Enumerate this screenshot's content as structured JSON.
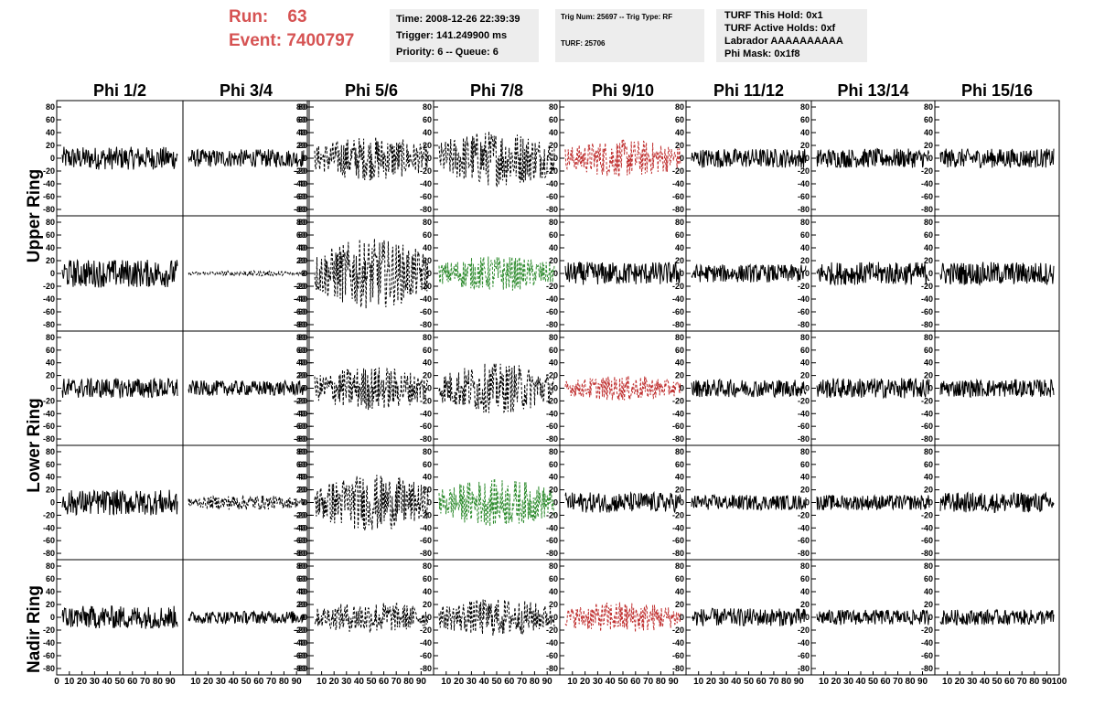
{
  "header": {
    "run_label": "Run:",
    "run_value": "63",
    "event_label": "Event:",
    "event_value": "7400797"
  },
  "info_boxes": {
    "box1": [
      "Time: 2008-12-26 22:39:39",
      "Trigger: 141.249900 ms",
      "Priority: 6 -- Queue: 6"
    ],
    "box2": [
      "Trig Num: 25697 -- Trig Type: RF",
      "TURF: 25706"
    ],
    "box3": [
      "TURF This Hold: 0x1",
      "TURF Active Holds: 0xf",
      "Labrador AAAAAAAAAA",
      "Phi Mask: 0x1f8"
    ]
  },
  "colors": {
    "title_red": "#d65353",
    "info_bg": "#ededed",
    "trace_black": "#000000",
    "trace_red": "#c03030",
    "trace_green": "#2e8b2e"
  },
  "chart_data": {
    "type": "line",
    "column_labels": [
      "Phi 1/2",
      "Phi 3/4",
      "Phi 5/6",
      "Phi 7/8",
      "Phi 9/10",
      "Phi 11/12",
      "Phi 13/14",
      "Phi 15/16"
    ],
    "row_labels": [
      "Upper Ring",
      "Lower Ring",
      "Nadir Ring"
    ],
    "xlim": [
      0,
      100
    ],
    "ylim": [
      -90,
      90
    ],
    "y_ticks": [
      -80,
      -60,
      -40,
      -20,
      0,
      20,
      40,
      60,
      80
    ],
    "x_ticks": [
      0,
      10,
      20,
      30,
      40,
      50,
      60,
      70,
      80,
      90,
      100
    ],
    "panel_tick_side": [
      "left",
      "right",
      "left",
      "left",
      "left",
      "left",
      "left",
      "left"
    ],
    "panel_amplitude": [
      [
        18,
        14,
        35,
        45,
        30,
        15,
        15,
        15
      ],
      [
        22,
        4,
        55,
        28,
        18,
        14,
        18,
        18
      ],
      [
        16,
        12,
        35,
        40,
        20,
        14,
        16,
        14
      ],
      [
        20,
        12,
        45,
        38,
        16,
        12,
        12,
        16
      ],
      [
        18,
        10,
        25,
        30,
        25,
        14,
        12,
        12
      ]
    ],
    "panel_style": [
      [
        "solid",
        "solid",
        "dashed",
        "dashed",
        "dashed-red",
        "solid",
        "solid",
        "solid"
      ],
      [
        "solid",
        "dashed",
        "dashed",
        "dashed-green",
        "solid",
        "solid",
        "solid",
        "solid"
      ],
      [
        "solid",
        "solid",
        "dashed",
        "dashed",
        "dashed-red",
        "solid",
        "solid",
        "solid"
      ],
      [
        "solid",
        "dashed",
        "dashed",
        "dashed-green",
        "solid",
        "solid",
        "solid",
        "solid"
      ],
      [
        "solid",
        "solid",
        "dashed",
        "dashed",
        "dashed-red",
        "solid",
        "solid",
        "solid"
      ]
    ],
    "grid": false
  }
}
